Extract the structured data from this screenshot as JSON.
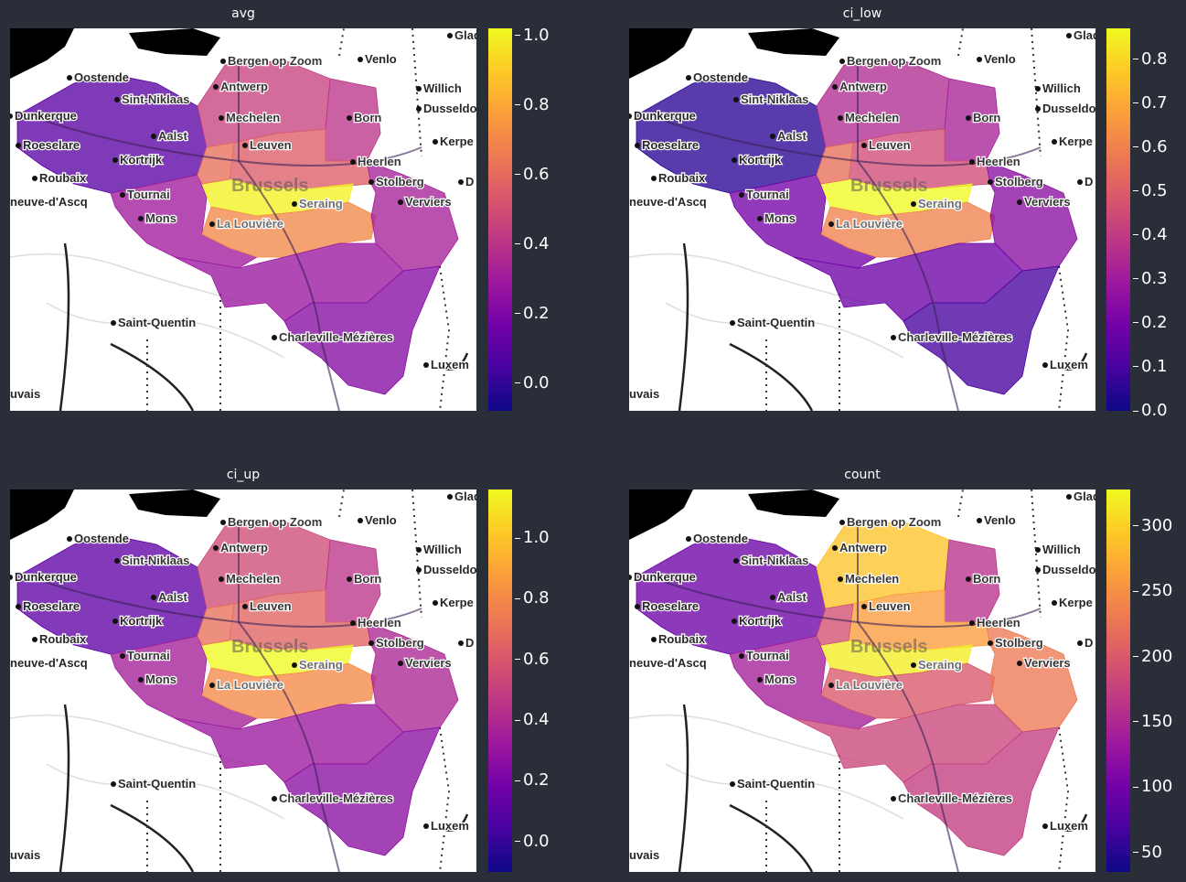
{
  "colormap": [
    "#0d0887",
    "#46039f",
    "#7201a8",
    "#9c179e",
    "#bd3786",
    "#d8576b",
    "#ed7953",
    "#fb9f3a",
    "#fdca26",
    "#f0f921"
  ],
  "city_labels": [
    "Glad",
    "Bergen op Zoom",
    "Venlo",
    "Oostende",
    "Antwerp",
    "Willich",
    "Sint-Niklaas",
    "Dusseldo",
    "Dunkerque",
    "Mechelen",
    "Born",
    "Aalst",
    "Leuven",
    "Kerpe",
    "Roeselare",
    "Kortrijk",
    "Heerlen",
    "Roubaix",
    "Brussels",
    "Stolberg",
    "D",
    "neuve-d'Ascq",
    "Tournai",
    "Seraing",
    "Verviers",
    "Mons",
    "La Louvière",
    "Saint-Quentin",
    "Charleville-Mézières",
    "Luxem",
    "uvais"
  ],
  "panels": [
    {
      "title": "avg",
      "ticks": [
        "0.0",
        "0.2",
        "0.4",
        "0.6",
        "0.8",
        "1.0"
      ],
      "tick_values": [
        0.0,
        0.2,
        0.4,
        0.6,
        0.8,
        1.0
      ],
      "range": [
        -0.08,
        1.02
      ],
      "region_values": {
        "west": 0.1,
        "hainaut": 0.3,
        "antwerp": 0.45,
        "limburg": 0.4,
        "brabant_vl": 0.55,
        "center": 0.7,
        "brussels": 1.0,
        "liege": 0.32,
        "namur": 0.28,
        "luxembourg": 0.22,
        "bw_east": 0.62
      }
    },
    {
      "title": "ci_low",
      "ticks": [
        "0.0",
        "0.1",
        "0.2",
        "0.3",
        "0.4",
        "0.5",
        "0.6",
        "0.7",
        "0.8"
      ],
      "tick_values": [
        0.0,
        0.1,
        0.2,
        0.3,
        0.4,
        0.5,
        0.6,
        0.7,
        0.8
      ],
      "range": [
        0.0,
        0.87
      ],
      "region_values": {
        "west": 0.05,
        "hainaut": 0.2,
        "antwerp": 0.35,
        "limburg": 0.32,
        "brabant_vl": 0.45,
        "center": 0.6,
        "brussels": 0.87,
        "liege": 0.25,
        "namur": 0.18,
        "luxembourg": 0.1,
        "bw_east": 0.55
      }
    },
    {
      "title": "ci_up",
      "ticks": [
        "0.0",
        "0.2",
        "0.4",
        "0.6",
        "0.8",
        "1.0"
      ],
      "tick_values": [
        0.0,
        0.2,
        0.4,
        0.6,
        0.8,
        1.0
      ],
      "range": [
        -0.1,
        1.16
      ],
      "region_values": {
        "west": 0.12,
        "hainaut": 0.35,
        "antwerp": 0.55,
        "limburg": 0.45,
        "brabant_vl": 0.65,
        "center": 0.8,
        "brussels": 1.16,
        "liege": 0.38,
        "namur": 0.32,
        "luxembourg": 0.26,
        "bw_east": 0.7
      }
    },
    {
      "title": "count",
      "ticks": [
        "50",
        "100",
        "150",
        "200",
        "250",
        "300"
      ],
      "tick_values": [
        50,
        100,
        150,
        200,
        250,
        300
      ],
      "range": [
        35,
        328
      ],
      "region_values": {
        "west": 95,
        "hainaut": 140,
        "antwerp": 290,
        "limburg": 160,
        "brabant_vl": 260,
        "center": 200,
        "brussels": 320,
        "liege": 230,
        "namur": 180,
        "luxembourg": 170,
        "bw_east": 190
      }
    }
  ]
}
